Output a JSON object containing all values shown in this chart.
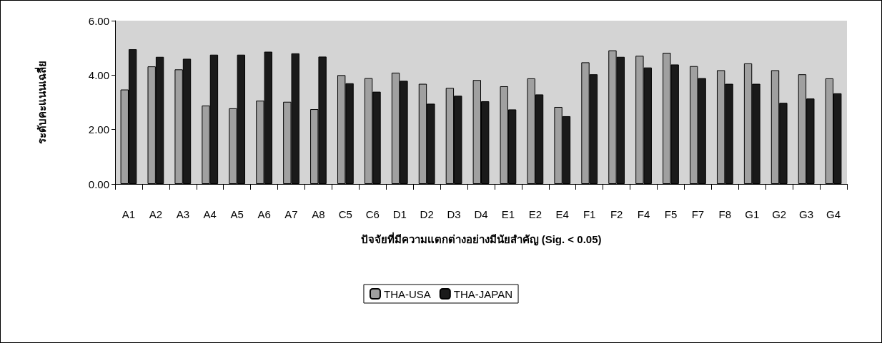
{
  "chart_data": {
    "type": "bar",
    "ylabel": "ระดับคะแนนเฉลี่ย",
    "xlabel": "ปัจจัยที่มีความแตกต่างอย่างมีนัยสำคัญ (Sig. < 0.05)",
    "categories": [
      "A1",
      "A2",
      "A3",
      "A4",
      "A5",
      "A6",
      "A7",
      "A8",
      "C5",
      "C6",
      "D1",
      "D2",
      "D3",
      "D4",
      "E1",
      "E2",
      "E4",
      "F1",
      "F2",
      "F4",
      "F5",
      "F7",
      "F8",
      "G1",
      "G2",
      "G3",
      "G4"
    ],
    "series": [
      {
        "name": "THA-USA",
        "color": "#a0a0a0",
        "values": [
          3.47,
          4.32,
          4.21,
          2.88,
          2.78,
          3.06,
          3.02,
          2.75,
          4.0,
          3.89,
          4.09,
          3.68,
          3.53,
          3.82,
          3.59,
          3.88,
          2.83,
          4.47,
          4.91,
          4.71,
          4.82,
          4.33,
          4.18,
          4.43,
          4.18,
          4.03,
          3.88
        ]
      },
      {
        "name": "THA-JAPAN",
        "color": "#1a1a1a",
        "values": [
          4.95,
          4.67,
          4.6,
          4.75,
          4.75,
          4.86,
          4.8,
          4.68,
          3.7,
          3.39,
          3.79,
          2.95,
          3.24,
          3.04,
          2.74,
          3.29,
          2.49,
          4.03,
          4.67,
          4.28,
          4.39,
          3.89,
          3.68,
          3.68,
          2.98,
          3.14,
          3.33
        ]
      }
    ],
    "ylim": [
      0,
      6
    ],
    "yticks": [
      {
        "value": 0,
        "label": "0.00"
      },
      {
        "value": 2,
        "label": "2.00"
      },
      {
        "value": 4,
        "label": "4.00"
      },
      {
        "value": 6,
        "label": "6.00"
      }
    ],
    "grid": false,
    "legend": "bottom"
  }
}
